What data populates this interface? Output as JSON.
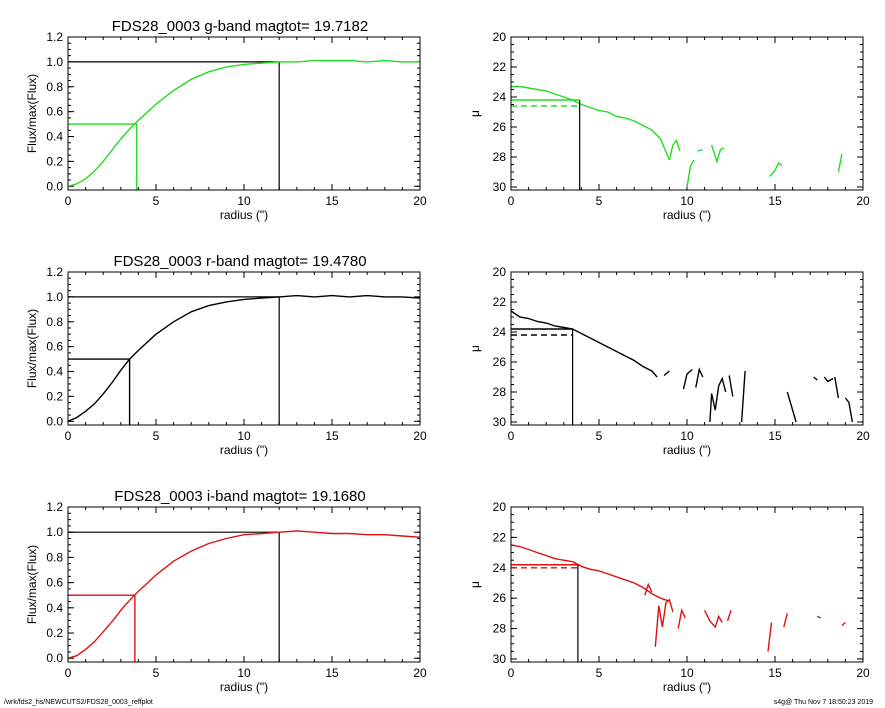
{
  "footer": {
    "path": "/wrk/fds2_hs/NEWCUTS2/FDS28_0003_reffplot",
    "stamp": "s4g@  Thu Nov  7 18:50:23 2019"
  },
  "colors": {
    "g": "#22dd22",
    "r": "#000000",
    "i": "#dd1111",
    "axes": "#000000"
  },
  "chart_data": [
    {
      "type": "line",
      "panel": "g-flux",
      "title": "FDS28_0003 g-band  magtot=      19.7182",
      "xlabel": "radius (\")",
      "ylabel": "Flux/max(Flux)",
      "xlim": [
        0,
        20
      ],
      "ylim": [
        -0.03,
        1.2
      ],
      "xticks": [
        "0",
        "5",
        "10",
        "15",
        "20"
      ],
      "yticks": [
        "0.0",
        "0.2",
        "0.4",
        "0.6",
        "0.8",
        "1.0",
        "1.2"
      ],
      "x": [
        0,
        0.5,
        1,
        1.5,
        2,
        2.5,
        3,
        3.5,
        4,
        5,
        6,
        7,
        8,
        9,
        10,
        11,
        12,
        13,
        14,
        15,
        16,
        17,
        18,
        19,
        20
      ],
      "y": [
        0,
        0.02,
        0.06,
        0.12,
        0.2,
        0.29,
        0.38,
        0.46,
        0.53,
        0.66,
        0.77,
        0.86,
        0.92,
        0.96,
        0.98,
        0.99,
        1.0,
        1.0,
        1.01,
        1.01,
        1.01,
        1.0,
        1.01,
        1.0,
        1.0
      ],
      "markers": {
        "half_light_radius": 3.9,
        "half_value": 0.5,
        "total_radius": 12.0,
        "total_value": 1.0
      }
    },
    {
      "type": "line",
      "panel": "g-mu",
      "xlabel": "radius (\")",
      "ylabel": "μ",
      "xlim": [
        0,
        20
      ],
      "ylim": [
        30.2,
        20
      ],
      "inverted_y": true,
      "xticks": [
        "0",
        "5",
        "10",
        "15",
        "20"
      ],
      "yticks": [
        "20",
        "22",
        "24",
        "26",
        "28",
        "30"
      ],
      "segments": [
        {
          "x": [
            0,
            0.5,
            1,
            1.5,
            2,
            2.5,
            3,
            3.5,
            4,
            4.5,
            5,
            5.5,
            6,
            6.5,
            7,
            7.5,
            8,
            8.5,
            9
          ],
          "y": [
            23.3,
            23.3,
            23.4,
            23.5,
            23.6,
            23.8,
            24.0,
            24.2,
            24.5,
            24.7,
            24.9,
            25.0,
            25.3,
            25.4,
            25.6,
            25.9,
            26.2,
            26.8,
            28.2
          ]
        },
        {
          "x": [
            9,
            9.2,
            9.4,
            9.6
          ],
          "y": [
            28.2,
            27.2,
            26.9,
            27.6
          ]
        },
        {
          "x": [
            10,
            10.2,
            10.4
          ],
          "y": [
            30.0,
            28.6,
            28.2
          ]
        },
        {
          "x": [
            10.6,
            10.9
          ],
          "y": [
            27.6,
            27.5
          ]
        },
        {
          "x": [
            11.4,
            11.7,
            11.9,
            12.1
          ],
          "y": [
            27.2,
            28.3,
            27.5,
            27.4
          ]
        },
        {
          "x": [
            14.7,
            15.0,
            15.2,
            15.4
          ],
          "y": [
            29.3,
            28.9,
            28.4,
            28.6
          ]
        },
        {
          "x": [
            18.6,
            18.8
          ],
          "y": [
            29.0,
            27.8
          ]
        }
      ],
      "markers": {
        "reff": 3.9,
        "mu_eff": 24.2,
        "mu_mean": 24.6
      }
    },
    {
      "type": "line",
      "panel": "r-flux",
      "title": "FDS28_0003 r-band  magtot=      19.4780",
      "xlabel": "radius (\")",
      "ylabel": "Flux/max(Flux)",
      "xlim": [
        0,
        20
      ],
      "ylim": [
        -0.03,
        1.2
      ],
      "xticks": [
        "0",
        "5",
        "10",
        "15",
        "20"
      ],
      "yticks": [
        "0.0",
        "0.2",
        "0.4",
        "0.6",
        "0.8",
        "1.0",
        "1.2"
      ],
      "x": [
        0,
        0.5,
        1,
        1.5,
        2,
        2.5,
        3,
        3.5,
        4,
        5,
        6,
        7,
        8,
        9,
        10,
        11,
        12,
        13,
        14,
        15,
        16,
        17,
        18,
        19,
        20
      ],
      "y": [
        0,
        0.03,
        0.08,
        0.14,
        0.22,
        0.31,
        0.41,
        0.5,
        0.57,
        0.7,
        0.8,
        0.88,
        0.93,
        0.96,
        0.98,
        0.99,
        1.0,
        1.01,
        1.0,
        1.01,
        1.0,
        1.01,
        1.0,
        1.0,
        0.99
      ],
      "markers": {
        "half_light_radius": 3.5,
        "half_value": 0.5,
        "total_radius": 12.0,
        "total_value": 1.0
      }
    },
    {
      "type": "line",
      "panel": "r-mu",
      "xlabel": "radius (\")",
      "ylabel": "μ",
      "xlim": [
        0,
        20
      ],
      "ylim": [
        30.2,
        20
      ],
      "inverted_y": true,
      "xticks": [
        "0",
        "5",
        "10",
        "15",
        "20"
      ],
      "yticks": [
        "20",
        "22",
        "24",
        "26",
        "28",
        "30"
      ],
      "segments": [
        {
          "x": [
            0,
            0.5,
            1,
            1.5,
            2,
            2.5,
            3,
            3.5,
            4,
            4.5,
            5,
            5.5,
            6,
            6.5,
            7,
            7.5,
            8,
            8.3
          ],
          "y": [
            22.6,
            23.0,
            23.1,
            23.3,
            23.4,
            23.6,
            23.7,
            23.8,
            24.1,
            24.4,
            24.7,
            25.0,
            25.3,
            25.6,
            25.9,
            26.3,
            26.6,
            27.0
          ]
        },
        {
          "x": [
            8.7,
            9.0
          ],
          "y": [
            26.9,
            26.6
          ]
        },
        {
          "x": [
            9.8,
            10.0,
            10.3
          ],
          "y": [
            27.8,
            26.8,
            26.5
          ]
        },
        {
          "x": [
            10.5,
            10.7,
            10.9
          ],
          "y": [
            27.7,
            26.5,
            27.0
          ]
        },
        {
          "x": [
            11.3,
            11.4,
            11.6,
            11.8,
            12.0,
            12.2
          ],
          "y": [
            30.0,
            28.1,
            29.2,
            27.6,
            27.1,
            28.0
          ]
        },
        {
          "x": [
            12.4,
            12.6
          ],
          "y": [
            26.9,
            28.3
          ]
        },
        {
          "x": [
            13.1,
            13.3
          ],
          "y": [
            30.0,
            26.6
          ]
        },
        {
          "x": [
            15.7,
            16.2
          ],
          "y": [
            28.0,
            30.0
          ]
        },
        {
          "x": [
            17.2,
            17.4
          ],
          "y": [
            27.0,
            27.2
          ]
        },
        {
          "x": [
            17.8,
            18.0,
            18.3
          ],
          "y": [
            27.0,
            27.3,
            27.1
          ]
        },
        {
          "x": [
            18.4,
            18.6
          ],
          "y": [
            27.0,
            28.4
          ]
        },
        {
          "x": [
            19.0,
            19.2,
            19.4
          ],
          "y": [
            28.4,
            28.7,
            30.0
          ]
        }
      ],
      "markers": {
        "reff": 3.5,
        "mu_eff": 23.8,
        "mu_mean": 24.2
      }
    },
    {
      "type": "line",
      "panel": "i-flux",
      "title": "FDS28_0003 i-band  magtot=      19.1680",
      "xlabel": "radius (\")",
      "ylabel": "Flux/max(Flux)",
      "xlim": [
        0,
        20
      ],
      "ylim": [
        -0.03,
        1.2
      ],
      "xticks": [
        "0",
        "5",
        "10",
        "15",
        "20"
      ],
      "yticks": [
        "0.0",
        "0.2",
        "0.4",
        "0.6",
        "0.8",
        "1.0",
        "1.2"
      ],
      "x": [
        0,
        0.5,
        1,
        1.5,
        2,
        2.5,
        3,
        3.5,
        4,
        5,
        6,
        7,
        8,
        9,
        10,
        11,
        12,
        13,
        14,
        15,
        16,
        17,
        18,
        19,
        20
      ],
      "y": [
        0,
        0.02,
        0.07,
        0.13,
        0.21,
        0.29,
        0.38,
        0.46,
        0.53,
        0.66,
        0.77,
        0.85,
        0.91,
        0.95,
        0.98,
        0.99,
        1.0,
        1.01,
        1.0,
        0.99,
        0.99,
        0.98,
        0.98,
        0.97,
        0.96
      ],
      "markers": {
        "half_light_radius": 3.8,
        "half_value": 0.5,
        "total_radius": 12.0,
        "total_value": 1.0
      }
    },
    {
      "type": "line",
      "panel": "i-mu",
      "xlabel": "radius (\")",
      "ylabel": "μ",
      "xlim": [
        0,
        20
      ],
      "ylim": [
        30.2,
        20
      ],
      "inverted_y": true,
      "xticks": [
        "0",
        "5",
        "10",
        "15",
        "20"
      ],
      "yticks": [
        "20",
        "22",
        "24",
        "26",
        "28",
        "30"
      ],
      "segments": [
        {
          "x": [
            0,
            0.5,
            1,
            1.5,
            2,
            2.5,
            3,
            3.5,
            4,
            4.5,
            5,
            5.5,
            6,
            6.5,
            7,
            7.5,
            8,
            8.5,
            9
          ],
          "y": [
            22.5,
            22.6,
            22.8,
            23.0,
            23.2,
            23.4,
            23.5,
            23.6,
            23.9,
            24.1,
            24.2,
            24.4,
            24.6,
            24.8,
            25.0,
            25.3,
            25.7,
            26.0,
            26.2
          ]
        },
        {
          "x": [
            7.6,
            7.8,
            8.0
          ],
          "y": [
            25.8,
            25.1,
            25.6
          ]
        },
        {
          "x": [
            8.2,
            8.4,
            8.6,
            8.8,
            9.0,
            9.2
          ],
          "y": [
            29.2,
            26.5,
            27.9,
            26.3,
            26.1,
            26.9
          ]
        },
        {
          "x": [
            9.5,
            9.7,
            9.9
          ],
          "y": [
            28.0,
            26.8,
            27.3
          ]
        },
        {
          "x": [
            11.0,
            11.3,
            11.6,
            11.8,
            12.0
          ],
          "y": [
            26.8,
            27.5,
            27.9,
            27.2,
            27.6
          ]
        },
        {
          "x": [
            12.3,
            12.5
          ],
          "y": [
            27.5,
            26.8
          ]
        },
        {
          "x": [
            14.6,
            14.8
          ],
          "y": [
            29.5,
            27.6
          ]
        },
        {
          "x": [
            15.5,
            15.7
          ],
          "y": [
            27.9,
            27.0
          ]
        },
        {
          "x": [
            17.4,
            17.6
          ],
          "y": [
            27.2,
            27.3
          ]
        },
        {
          "x": [
            18.8,
            19.0
          ],
          "y": [
            27.8,
            27.6
          ]
        }
      ],
      "markers": {
        "reff": 3.8,
        "mu_eff": 23.8,
        "mu_mean": 24.0
      }
    }
  ]
}
